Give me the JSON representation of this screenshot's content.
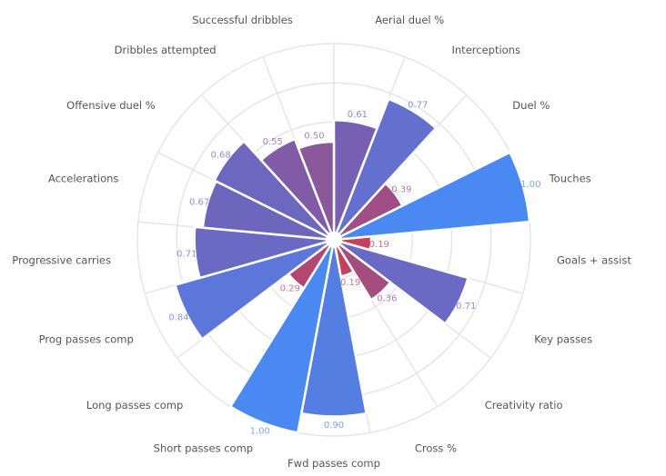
{
  "chart_data": {
    "type": "bar",
    "subtype": "polar-bar",
    "title": "",
    "categories": [
      "Aerial duel %",
      "Interceptions",
      "Duel %",
      "Touches",
      "Goals + assist",
      "Key passes",
      "Creativity ratio",
      "Cross %",
      "Fwd passes comp",
      "Short passes comp",
      "Long passes comp",
      "Prog passes comp",
      "Progressive carries",
      "Accelerations",
      "Offensive duel %",
      "Dribbles attempted",
      "Successful dribbles"
    ],
    "values": [
      0.61,
      0.77,
      0.39,
      1.0,
      0.19,
      0.71,
      0.36,
      0.19,
      0.9,
      1.0,
      0.29,
      0.84,
      0.71,
      0.67,
      0.68,
      0.55,
      0.5
    ],
    "value_labels": [
      "0.61",
      "0.77",
      "0.39",
      "1.00",
      "0.19",
      "0.71",
      "0.36",
      "0.19",
      "0.90",
      "1.00",
      "0.29",
      "0.84",
      "0.71",
      "0.67",
      "0.68",
      "0.55",
      "0.50"
    ],
    "rlim": [
      0,
      1
    ],
    "r_gridlines": [
      0.2,
      0.4,
      0.6,
      0.8,
      1.0
    ],
    "grid": true,
    "start_direction": "top",
    "direction": "clockwise",
    "legend": "none",
    "color_scale": {
      "low": "#c4405c",
      "mid": "#7262b8",
      "high": "#4a88f2"
    }
  }
}
